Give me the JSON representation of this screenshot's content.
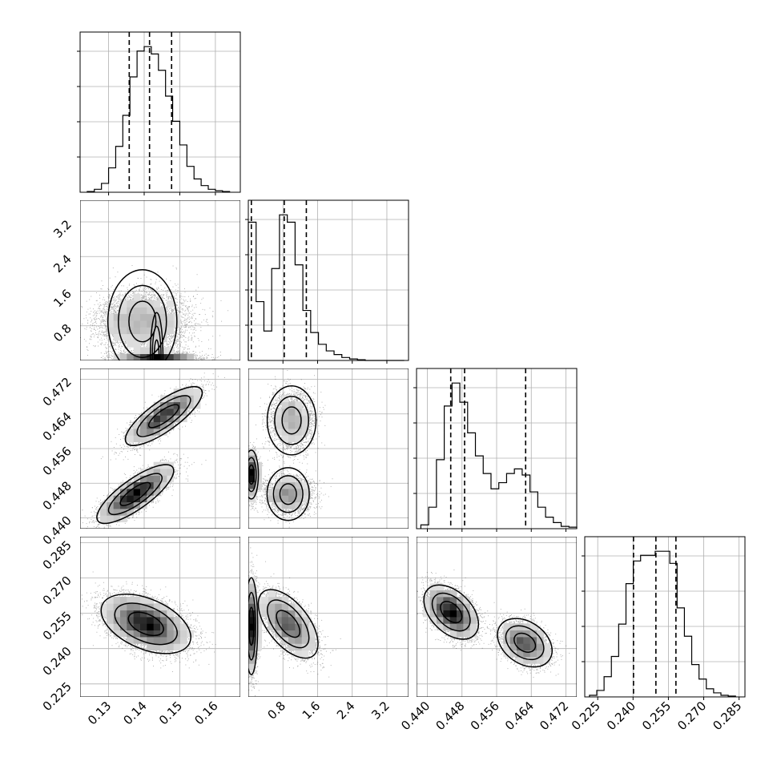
{
  "chart_data": {
    "type": "corner",
    "grid": true,
    "quantile_line_style": "dashed",
    "params": [
      {
        "range": [
          0.122,
          0.167
        ],
        "ticks": [
          0.13,
          0.14,
          0.15,
          0.16
        ],
        "tick_labels": [
          "0.13",
          "0.14",
          "0.15",
          "0.16"
        ]
      },
      {
        "range": [
          0.0,
          3.7
        ],
        "ticks": [
          0.8,
          1.6,
          2.4,
          3.2
        ],
        "tick_labels": [
          "0.8",
          "1.6",
          "2.4",
          "3.2"
        ]
      },
      {
        "range": [
          0.4375,
          0.4745
        ],
        "ticks": [
          0.44,
          0.448,
          0.456,
          0.464,
          0.472
        ],
        "tick_labels": [
          "0.440",
          "0.448",
          "0.456",
          "0.464",
          "0.472"
        ]
      },
      {
        "range": [
          0.2195,
          0.2875
        ],
        "ticks": [
          0.225,
          0.24,
          0.255,
          0.27,
          0.285
        ],
        "tick_labels": [
          "0.225",
          "0.240",
          "0.255",
          "0.270",
          "0.285"
        ]
      }
    ],
    "histograms": [
      {
        "param": 0,
        "bins": [
          0.124,
          0.126,
          0.128,
          0.13,
          0.132,
          0.134,
          0.136,
          0.138,
          0.14,
          0.142,
          0.144,
          0.146,
          0.148,
          0.15,
          0.152,
          0.154,
          0.156,
          0.158,
          0.16,
          0.162,
          0.164
        ],
        "counts": [
          1,
          4,
          12,
          33,
          62,
          104,
          156,
          191,
          197,
          187,
          165,
          130,
          96,
          64,
          35,
          18,
          9,
          4,
          2,
          1
        ],
        "quantiles": [
          0.1358,
          0.1415,
          0.1477
        ]
      },
      {
        "param": 1,
        "bins": [
          0.0,
          0.18,
          0.36,
          0.54,
          0.72,
          0.9,
          1.08,
          1.26,
          1.44,
          1.62,
          1.8,
          1.98,
          2.16,
          2.34,
          2.52,
          2.7,
          2.88,
          3.06,
          3.24,
          3.42,
          3.6
        ],
        "counts": [
          188,
          80,
          40,
          125,
          198,
          188,
          130,
          68,
          38,
          22,
          13,
          8,
          4,
          2,
          1,
          0,
          0,
          0,
          0,
          0
        ],
        "quantiles": [
          0.07,
          0.83,
          1.34
        ]
      },
      {
        "param": 2,
        "bins": [
          0.4385,
          0.4403,
          0.4421,
          0.4439,
          0.4457,
          0.4475,
          0.4493,
          0.4511,
          0.4529,
          0.4547,
          0.4565,
          0.4583,
          0.4601,
          0.4619,
          0.4637,
          0.4655,
          0.4673,
          0.4691,
          0.4709,
          0.4727,
          0.4745
        ],
        "counts": [
          5,
          28,
          90,
          160,
          190,
          165,
          125,
          95,
          72,
          52,
          60,
          72,
          78,
          70,
          48,
          28,
          15,
          8,
          3,
          2
        ],
        "quantiles": [
          0.4454,
          0.4486,
          0.4627
        ]
      },
      {
        "param": 3,
        "bins": [
          0.2215,
          0.2246,
          0.2277,
          0.2308,
          0.2339,
          0.237,
          0.2401,
          0.2432,
          0.2463,
          0.2494,
          0.2525,
          0.2556,
          0.2587,
          0.2618,
          0.2649,
          0.268,
          0.2711,
          0.2742,
          0.2773,
          0.2804,
          0.2835
        ],
        "counts": [
          2,
          8,
          25,
          50,
          90,
          140,
          168,
          175,
          175,
          180,
          180,
          165,
          110,
          75,
          40,
          22,
          10,
          5,
          2,
          1
        ],
        "quantiles": [
          0.2402,
          0.2497,
          0.2582
        ]
      }
    ],
    "pairs": [
      {
        "x_param": 0,
        "y_param": 1,
        "components": [
          {
            "weight": 0.6,
            "mean": [
              0.1395,
              0.9
            ],
            "cov": [
              [
                4e-05,
                0
              ],
              [
                0,
                0.12
              ]
            ]
          },
          {
            "weight": 0.4,
            "mean": [
              0.1435,
              0.07
            ],
            "cov": [
              [
                3e-05,
                0
              ],
              [
                0,
                0.004
              ]
            ]
          }
        ]
      },
      {
        "x_param": 0,
        "y_param": 2,
        "components": [
          {
            "weight": 0.55,
            "mean": [
              0.1375,
              0.4455
            ],
            "cov": [
              [
                2.2e-05,
                1.1e-05
              ],
              [
                1.1e-05,
                8.7e-06
              ]
            ]
          },
          {
            "weight": 0.45,
            "mean": [
              0.1455,
              0.4635
            ],
            "cov": [
              [
                2.2e-05,
                1.1e-05
              ],
              [
                1.1e-05,
                8.7e-06
              ]
            ]
          }
        ]
      },
      {
        "x_param": 1,
        "y_param": 2,
        "components": [
          {
            "weight": 0.3,
            "mean": [
              0.07,
              0.45
            ],
            "cov": [
              [
                0.005,
                0
              ],
              [
                0,
                6e-06
              ]
            ]
          },
          {
            "weight": 0.35,
            "mean": [
              0.92,
              0.4455
            ],
            "cov": [
              [
                0.07,
                0
              ],
              [
                0,
                4.5e-06
              ]
            ]
          },
          {
            "weight": 0.35,
            "mean": [
              1.0,
              0.4625
            ],
            "cov": [
              [
                0.06,
                0
              ],
              [
                0,
                1.2e-05
              ]
            ]
          }
        ]
      },
      {
        "x_param": 0,
        "y_param": 3,
        "components": [
          {
            "weight": 1.0,
            "mean": [
              0.1405,
              0.2505
            ],
            "cov": [
              [
                3e-05,
                -1.35e-05
              ],
              [
                -1.35e-05,
                3e-05
              ]
            ]
          }
        ]
      },
      {
        "x_param": 1,
        "y_param": 3,
        "components": [
          {
            "weight": 0.4,
            "mean": [
              0.07,
              0.2495
            ],
            "cov": [
              [
                0.004,
                0
              ],
              [
                0,
                8e-05
              ]
            ]
          },
          {
            "weight": 0.6,
            "mean": [
              0.92,
              0.2505
            ],
            "cov": [
              [
                0.09,
                -0.0011
              ],
              [
                -0.0011,
                4e-05
              ]
            ]
          }
        ]
      },
      {
        "x_param": 2,
        "y_param": 3,
        "components": [
          {
            "weight": 0.6,
            "mean": [
              0.4455,
              0.2555
            ],
            "cov": [
              [
                7.5e-06,
                -6e-06
              ],
              [
                -6e-06,
                2.5e-05
              ]
            ]
          },
          {
            "weight": 0.4,
            "mean": [
              0.4625,
              0.2425
            ],
            "cov": [
              [
                7.5e-06,
                -4e-06
              ],
              [
                -4e-06,
                2e-05
              ]
            ]
          }
        ]
      }
    ]
  }
}
